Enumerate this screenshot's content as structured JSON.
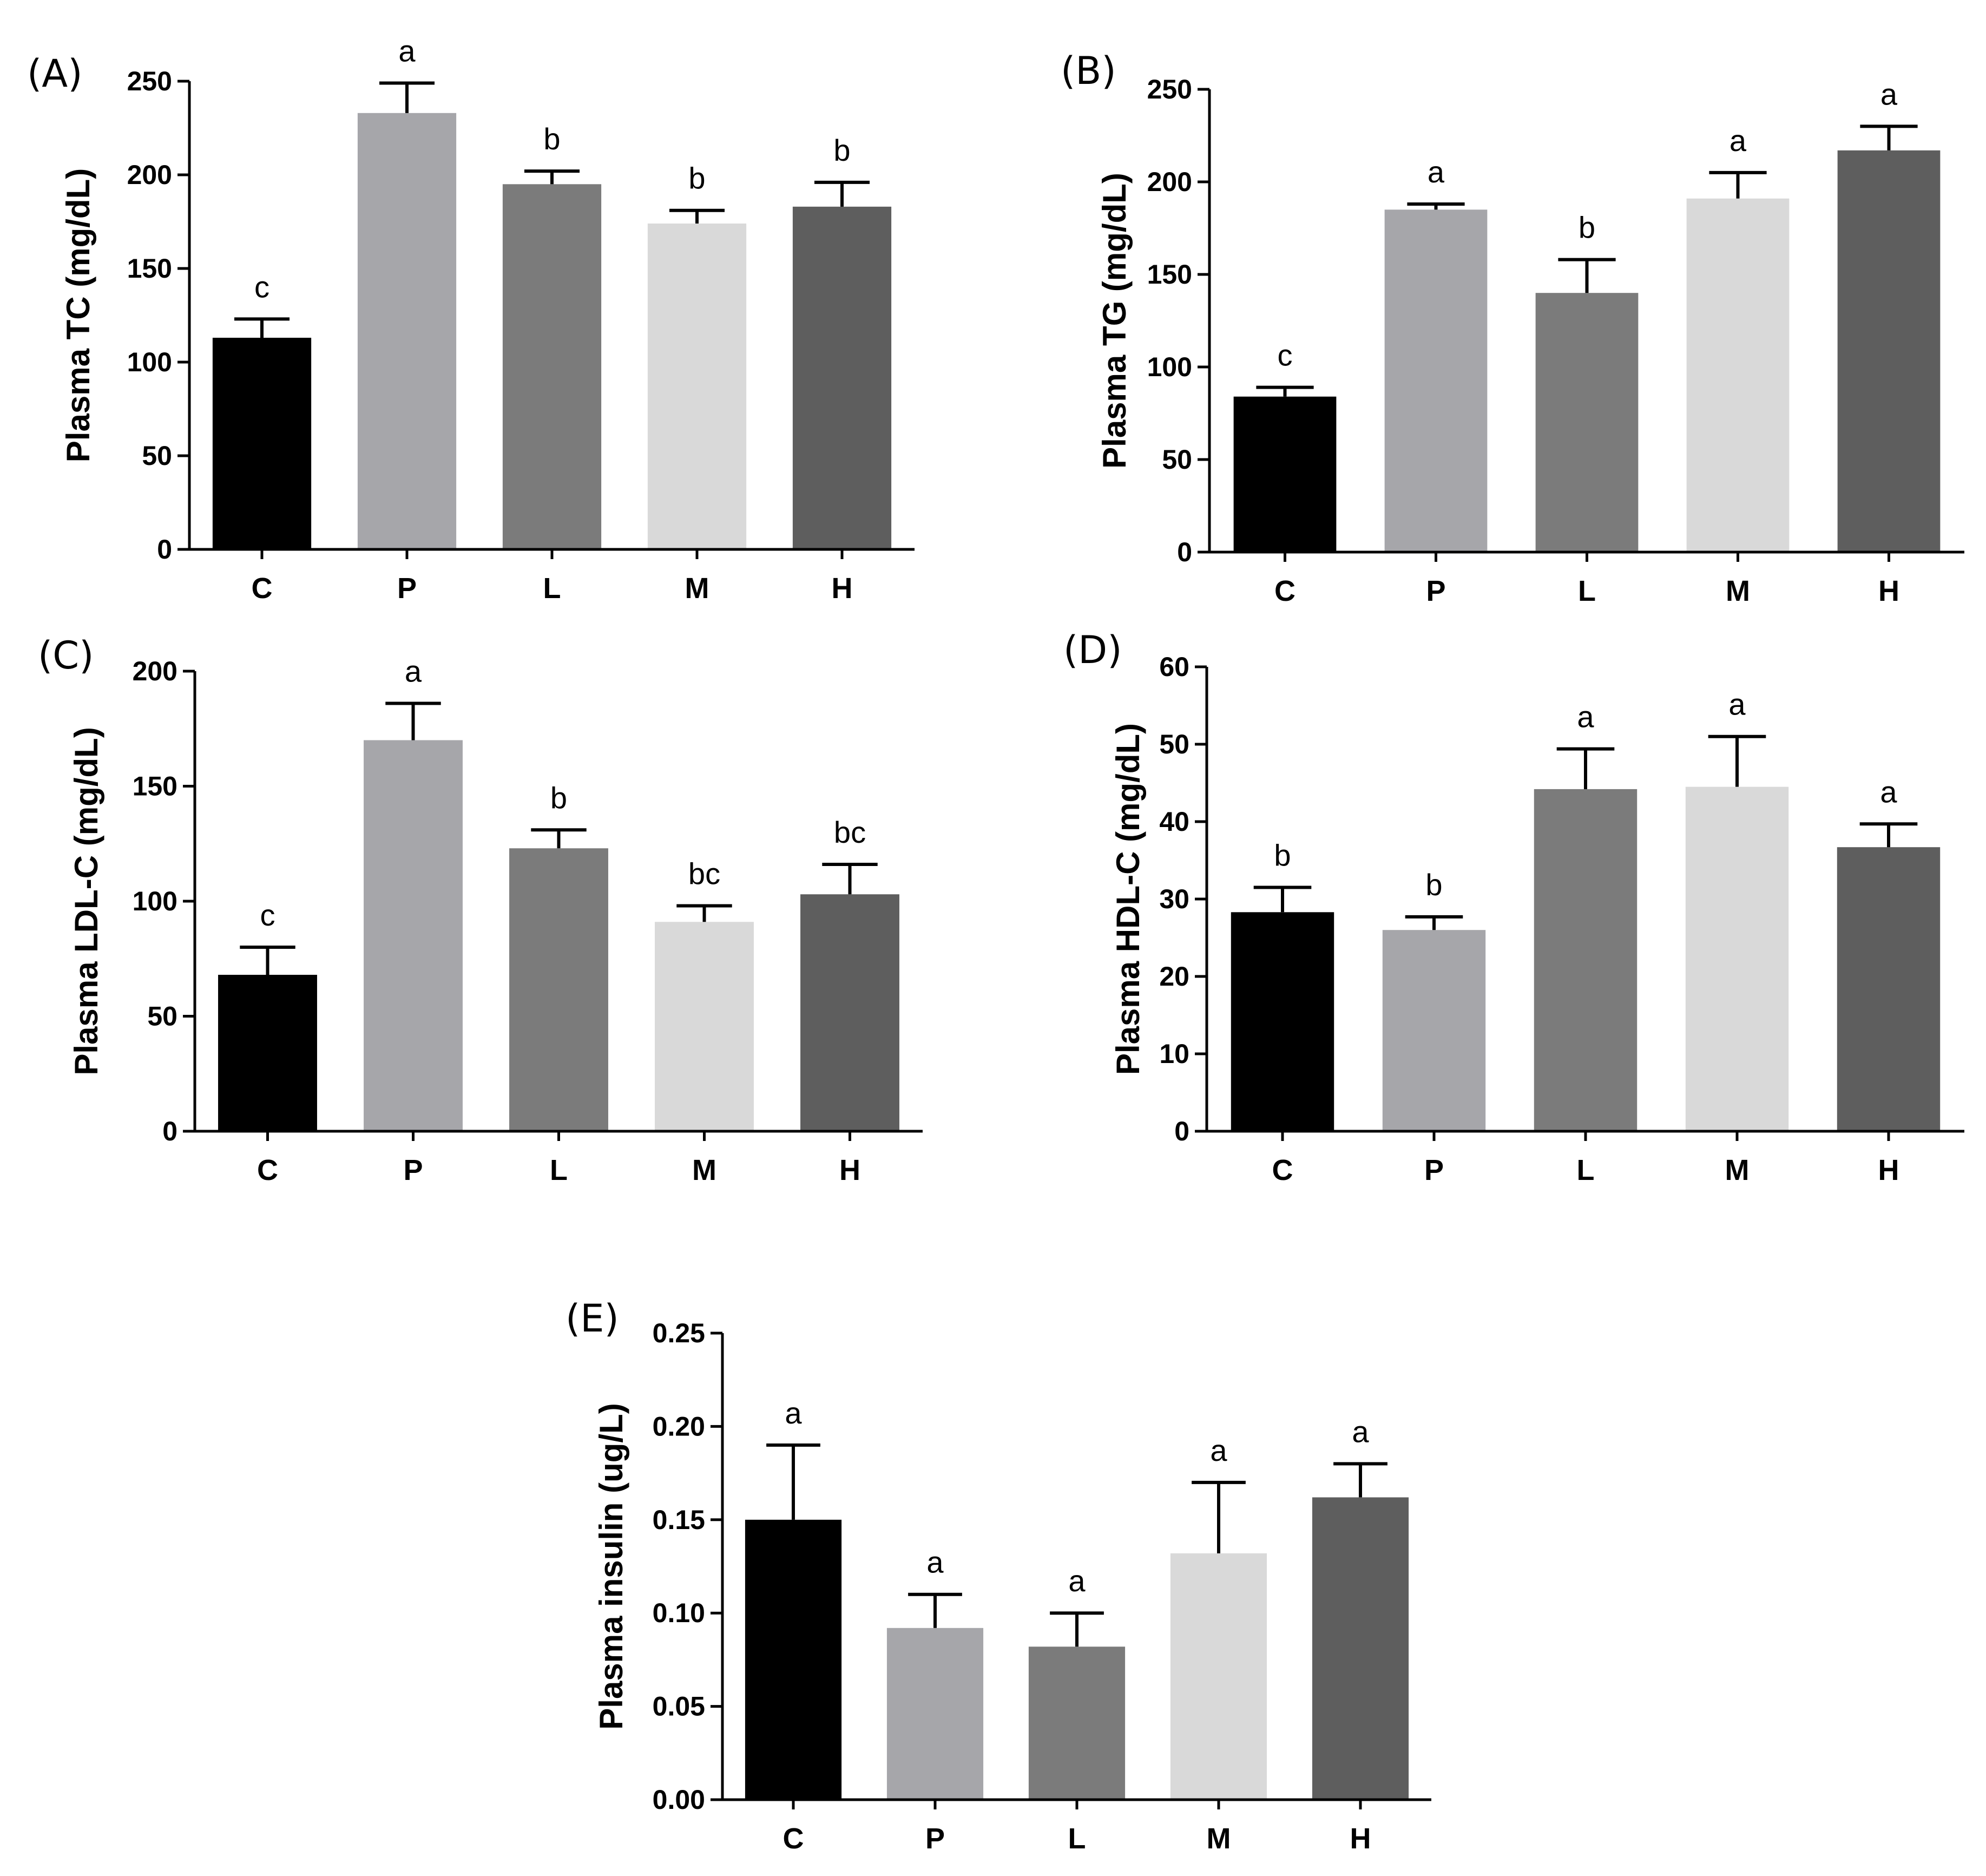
{
  "chart_data": [
    {
      "type": "bar",
      "panel_label": "(A)",
      "ylabel": "Plasma TC (mg/dL)",
      "categories": [
        "C",
        "P",
        "L",
        "M",
        "H"
      ],
      "values": [
        113,
        233,
        195,
        174,
        183
      ],
      "errors": [
        10,
        16,
        7,
        7,
        13
      ],
      "letters": [
        "c",
        "a",
        "b",
        "b",
        "b"
      ],
      "colors": [
        "#000000",
        "#a6a6aa",
        "#7b7b7b",
        "#d9d9d9",
        "#5e5e5e"
      ],
      "ylim": [
        0,
        250
      ],
      "yticks": [
        "0",
        "50",
        "100",
        "150",
        "200",
        "250"
      ]
    },
    {
      "type": "bar",
      "panel_label": "(B)",
      "ylabel": "Plasma TG (mg/dL)",
      "categories": [
        "C",
        "P",
        "L",
        "M",
        "H"
      ],
      "values": [
        84,
        185,
        140,
        191,
        217
      ],
      "errors": [
        5,
        3,
        18,
        14,
        13
      ],
      "letters": [
        "c",
        "a",
        "b",
        "a",
        "a"
      ],
      "colors": [
        "#000000",
        "#a6a6aa",
        "#7b7b7b",
        "#d9d9d9",
        "#5e5e5e"
      ],
      "ylim": [
        0,
        250
      ],
      "yticks": [
        "0",
        "50",
        "100",
        "150",
        "200",
        "250"
      ]
    },
    {
      "type": "bar",
      "panel_label": "(C)",
      "ylabel": "Plasma LDL-C (mg/dL)",
      "categories": [
        "C",
        "P",
        "L",
        "M",
        "H"
      ],
      "values": [
        68,
        170,
        123,
        91,
        103
      ],
      "errors": [
        12,
        16,
        8,
        7,
        13
      ],
      "letters": [
        "c",
        "a",
        "b",
        "bc",
        "bc"
      ],
      "colors": [
        "#000000",
        "#a6a6aa",
        "#7b7b7b",
        "#d9d9d9",
        "#5e5e5e"
      ],
      "ylim": [
        0,
        200
      ],
      "yticks": [
        "0",
        "50",
        "100",
        "150",
        "200"
      ]
    },
    {
      "type": "bar",
      "panel_label": "(D)",
      "ylabel": "Plasma HDL-C (mg/dL)",
      "categories": [
        "C",
        "P",
        "L",
        "M",
        "H"
      ],
      "values": [
        28.3,
        26,
        44.2,
        44.5,
        36.7
      ],
      "errors": [
        3.2,
        1.7,
        5.2,
        6.5,
        3
      ],
      "letters": [
        "b",
        "b",
        "a",
        "a",
        "a"
      ],
      "colors": [
        "#000000",
        "#a6a6aa",
        "#7b7b7b",
        "#d9d9d9",
        "#5e5e5e"
      ],
      "ylim": [
        0,
        60
      ],
      "yticks": [
        "0",
        "10",
        "20",
        "30",
        "40",
        "50",
        "60"
      ]
    },
    {
      "type": "bar",
      "panel_label": "(E)",
      "ylabel": "Plasma insulin (ug/L)",
      "categories": [
        "C",
        "P",
        "L",
        "M",
        "H"
      ],
      "values": [
        0.15,
        0.092,
        0.082,
        0.132,
        0.162
      ],
      "errors": [
        0.04,
        0.018,
        0.018,
        0.038,
        0.018
      ],
      "letters": [
        "a",
        "a",
        "a",
        "a",
        "a"
      ],
      "colors": [
        "#000000",
        "#a6a6aa",
        "#7b7b7b",
        "#d9d9d9",
        "#5e5e5e"
      ],
      "ylim": [
        0,
        0.25
      ],
      "yticks": [
        "0.00",
        "0.05",
        "0.10",
        "0.15",
        "0.20",
        "0.25"
      ]
    }
  ]
}
